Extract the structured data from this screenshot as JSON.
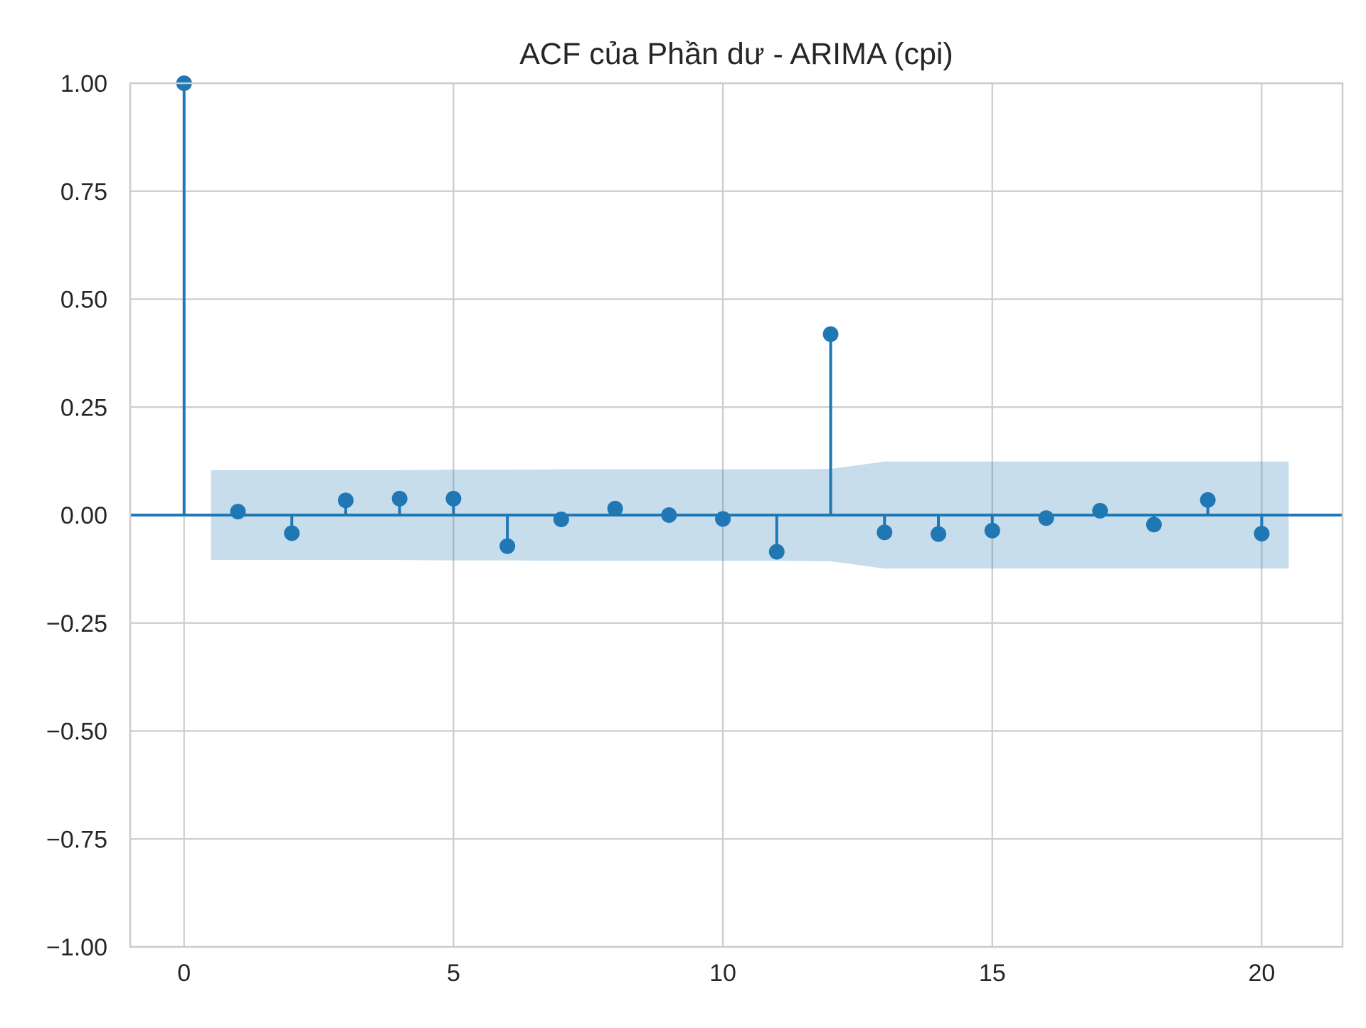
{
  "chart_data": {
    "type": "stem",
    "title": "ACF của Phần dư - ARIMA (cpi)",
    "xlabel": "",
    "ylabel": "",
    "xlim": [
      -1,
      21.5
    ],
    "ylim": [
      -1.0,
      1.0
    ],
    "x_ticks": [
      0,
      5,
      10,
      15,
      20
    ],
    "y_ticks": [
      -1.0,
      -0.75,
      -0.5,
      -0.25,
      0.0,
      0.25,
      0.5,
      0.75,
      1.0
    ],
    "x_tick_labels": [
      "0",
      "5",
      "10",
      "15",
      "20"
    ],
    "y_tick_labels": [
      "−1.00",
      "−0.75",
      "−0.50",
      "−0.25",
      "0.00",
      "0.25",
      "0.50",
      "0.75",
      "1.00"
    ],
    "grid": true,
    "color": "#1f77b4",
    "band_color": "#1f77b4",
    "lags": [
      0,
      1,
      2,
      3,
      4,
      5,
      6,
      7,
      8,
      9,
      10,
      11,
      12,
      13,
      14,
      15,
      16,
      17,
      18,
      19,
      20
    ],
    "acf": [
      1.0,
      0.008,
      -0.042,
      0.034,
      0.038,
      0.038,
      -0.072,
      -0.01,
      0.015,
      0.0,
      -0.009,
      -0.085,
      0.419,
      -0.04,
      -0.044,
      -0.036,
      -0.007,
      0.01,
      -0.022,
      0.035,
      -0.043
    ],
    "confidence_band": {
      "x": [
        0.5,
        1,
        2,
        3,
        4,
        5,
        6,
        7,
        8,
        9,
        10,
        11,
        12,
        13,
        14,
        15,
        16,
        17,
        18,
        19,
        20,
        20.5
      ],
      "upper": [
        0.104,
        0.104,
        0.104,
        0.104,
        0.104,
        0.105,
        0.105,
        0.106,
        0.106,
        0.106,
        0.106,
        0.106,
        0.107,
        0.124,
        0.124,
        0.124,
        0.124,
        0.124,
        0.124,
        0.124,
        0.124,
        0.124
      ],
      "lower": [
        -0.104,
        -0.104,
        -0.104,
        -0.104,
        -0.104,
        -0.105,
        -0.105,
        -0.106,
        -0.106,
        -0.106,
        -0.106,
        -0.106,
        -0.107,
        -0.124,
        -0.124,
        -0.124,
        -0.124,
        -0.124,
        -0.124,
        -0.124,
        -0.124,
        -0.124
      ]
    }
  }
}
